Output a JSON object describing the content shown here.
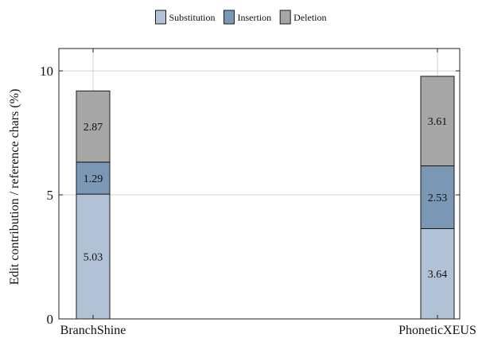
{
  "chart_data": {
    "type": "bar",
    "stacked": true,
    "title": "",
    "xlabel": "",
    "ylabel": "Edit contribution / reference chars (%)",
    "categories": [
      "BranchShine",
      "PhoneticXEUS"
    ],
    "series": [
      {
        "name": "Substitution",
        "values": [
          5.03,
          3.64
        ],
        "color": "#b1c2d6"
      },
      {
        "name": "Insertion",
        "values": [
          1.29,
          2.53
        ],
        "color": "#7b97b6"
      },
      {
        "name": "Deletion",
        "values": [
          2.87,
          3.61
        ],
        "color": "#a6a6a6"
      }
    ],
    "ylim": [
      0,
      10.9
    ],
    "yticks": [
      0,
      5,
      10
    ],
    "grid": true,
    "legend_position": "top-center"
  }
}
